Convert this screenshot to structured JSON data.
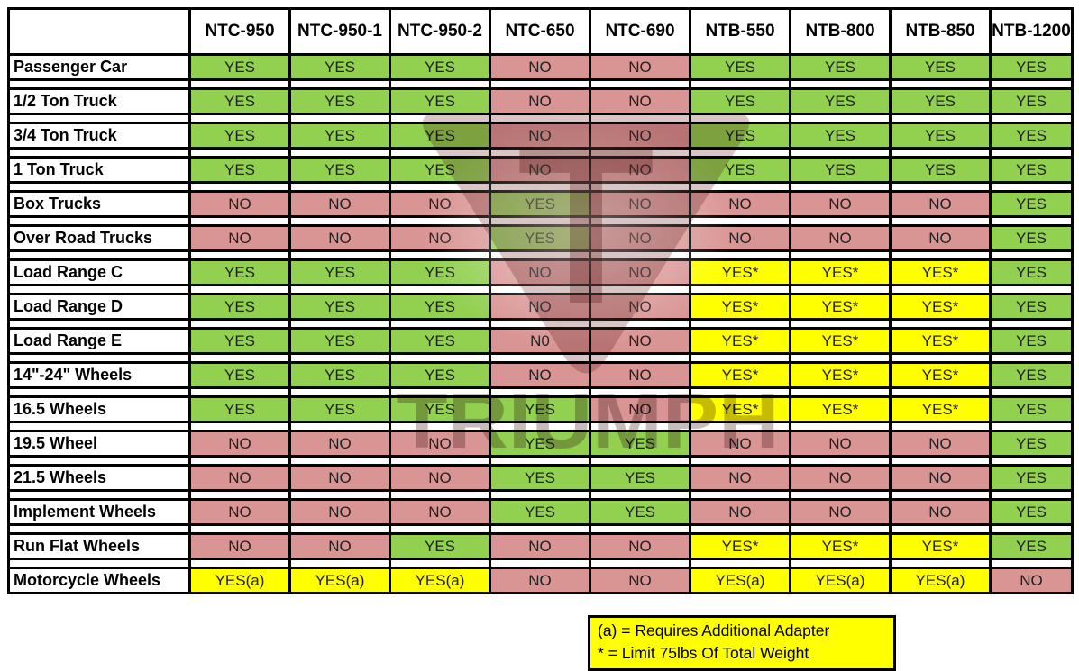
{
  "colors": {
    "yes_bg": "#92D050",
    "no_bg": "#D99594",
    "conditional_bg": "#FFFF00",
    "border": "#000000"
  },
  "table": {
    "corner_label": "",
    "columns": [
      "NTC-950",
      "NTC-950-1",
      "NTC-950-2",
      "NTC-650",
      "NTC-690",
      "NTB-550",
      "NTB-800",
      "NTB-850",
      "NTB-1200"
    ],
    "rows": [
      {
        "label": "Passenger Car",
        "values": [
          "YES",
          "YES",
          "YES",
          "NO",
          "NO",
          "YES",
          "YES",
          "YES",
          "YES"
        ]
      },
      {
        "label": "1/2 Ton Truck",
        "values": [
          "YES",
          "YES",
          "YES",
          "NO",
          "NO",
          "YES",
          "YES",
          "YES",
          "YES"
        ]
      },
      {
        "label": "3/4 Ton Truck",
        "values": [
          "YES",
          "YES",
          "YES",
          "NO",
          "NO",
          "YES",
          "YES",
          "YES",
          "YES"
        ]
      },
      {
        "label": "1 Ton Truck",
        "values": [
          "YES",
          "YES",
          "YES",
          "NO",
          "NO",
          "YES",
          "YES",
          "YES",
          "YES"
        ]
      },
      {
        "label": "Box Trucks",
        "values": [
          "NO",
          "NO",
          "NO",
          "YES",
          "NO",
          "NO",
          "NO",
          "NO",
          "YES"
        ]
      },
      {
        "label": "Over Road Trucks",
        "values": [
          "NO",
          "NO",
          "NO",
          "YES",
          "NO",
          "NO",
          "NO",
          "NO",
          "YES"
        ]
      },
      {
        "label": "Load Range C",
        "values": [
          "YES",
          "YES",
          "YES",
          "NO",
          "NO",
          "YES*",
          "YES*",
          "YES*",
          "YES"
        ]
      },
      {
        "label": "Load Range D",
        "values": [
          "YES",
          "YES",
          "YES",
          "NO",
          "NO",
          "YES*",
          "YES*",
          "YES*",
          "YES"
        ]
      },
      {
        "label": "Load Range E",
        "values": [
          "YES",
          "YES",
          "YES",
          "N0",
          "NO",
          "YES*",
          "YES*",
          "YES*",
          "YES"
        ]
      },
      {
        "label": "14\"-24\" Wheels",
        "values": [
          "YES",
          "YES",
          "YES",
          "NO",
          "NO",
          "YES*",
          "YES*",
          "YES*",
          "YES"
        ]
      },
      {
        "label": "16.5 Wheels",
        "values": [
          "YES",
          "YES",
          "YES",
          "YES",
          "NO",
          "YES*",
          "YES*",
          "YES*",
          "YES"
        ]
      },
      {
        "label": "19.5 Wheel",
        "values": [
          "NO",
          "NO",
          "NO",
          "YES",
          "YES",
          "NO",
          "NO",
          "NO",
          "YES"
        ]
      },
      {
        "label": "21.5 Wheels",
        "values": [
          "NO",
          "NO",
          "NO",
          "YES",
          "YES",
          "NO",
          "NO",
          "NO",
          "YES"
        ]
      },
      {
        "label": "Implement Wheels",
        "values": [
          "NO",
          "NO",
          "NO",
          "YES",
          "YES",
          "NO",
          "NO",
          "NO",
          "YES"
        ]
      },
      {
        "label": "Run Flat Wheels",
        "values": [
          "NO",
          "NO",
          "YES",
          "NO",
          "NO",
          "YES*",
          "YES*",
          "YES*",
          "YES"
        ]
      },
      {
        "label": "Motorcycle Wheels",
        "values": [
          "YES(a)",
          "YES(a)",
          "YES(a)",
          "NO",
          "NO",
          "YES(a)",
          "YES(a)",
          "YES(a)",
          "NO"
        ]
      }
    ]
  },
  "legend": {
    "line1": "(a) = Requires Additional Adapter",
    "line2": "* = Limit 75lbs Of Total Weight"
  },
  "watermark": {
    "text": "TRIUMPH",
    "monogram": "T"
  }
}
